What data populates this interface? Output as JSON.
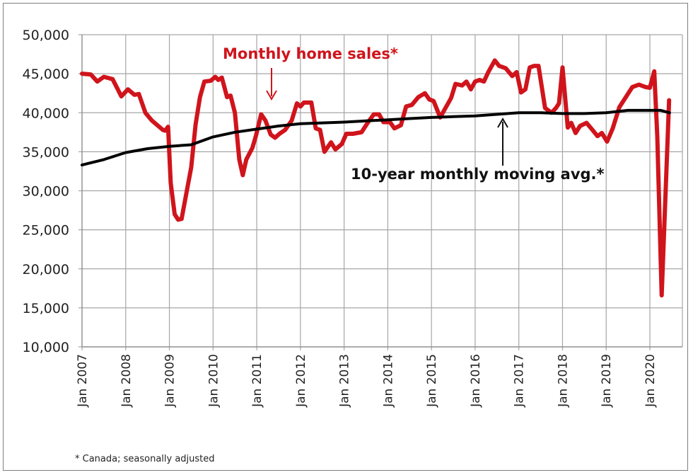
{
  "chart_data": {
    "type": "line",
    "title": "",
    "xlabel": "",
    "ylabel": "",
    "ylim": [
      10000,
      50000
    ],
    "xlim": [
      2007.0,
      2020.75
    ],
    "grid": true,
    "y_ticks": [
      "10,000",
      "15,000",
      "20,000",
      "25,000",
      "30,000",
      "35,000",
      "40,000",
      "45,000",
      "50,000"
    ],
    "y_tick_values": [
      10000,
      15000,
      20000,
      25000,
      30000,
      35000,
      40000,
      45000,
      50000
    ],
    "x_ticks": [
      "Jan 2007",
      "Jan 2008",
      "Jan 2009",
      "Jan 2010",
      "Jan 2011",
      "Jan 2012",
      "Jan 2013",
      "Jan 2014",
      "Jan 2015",
      "Jan 2016",
      "Jan 2017",
      "Jan 2018",
      "Jan 2019",
      "Jan 2020"
    ],
    "x_tick_values": [
      2007,
      2008,
      2009,
      2010,
      2011,
      2012,
      2013,
      2014,
      2015,
      2016,
      2017,
      2018,
      2019,
      2020
    ],
    "series": [
      {
        "name": "Monthly home sales*",
        "color": "#d0141c",
        "points": [
          [
            2007.0,
            45000
          ],
          [
            2007.2,
            44900
          ],
          [
            2007.35,
            44000
          ],
          [
            2007.5,
            44600
          ],
          [
            2007.7,
            44300
          ],
          [
            2007.9,
            42100
          ],
          [
            2008.05,
            43000
          ],
          [
            2008.2,
            42300
          ],
          [
            2008.3,
            42400
          ],
          [
            2008.45,
            40000
          ],
          [
            2008.6,
            39000
          ],
          [
            2008.85,
            37800
          ],
          [
            2008.9,
            37700
          ],
          [
            2008.97,
            38200
          ],
          [
            2009.03,
            31000
          ],
          [
            2009.12,
            27000
          ],
          [
            2009.2,
            26300
          ],
          [
            2009.28,
            26400
          ],
          [
            2009.4,
            30000
          ],
          [
            2009.5,
            33000
          ],
          [
            2009.6,
            38500
          ],
          [
            2009.7,
            42000
          ],
          [
            2009.8,
            44000
          ],
          [
            2009.95,
            44100
          ],
          [
            2010.05,
            44600
          ],
          [
            2010.12,
            44200
          ],
          [
            2010.2,
            44500
          ],
          [
            2010.32,
            42000
          ],
          [
            2010.4,
            42200
          ],
          [
            2010.5,
            40000
          ],
          [
            2010.6,
            34000
          ],
          [
            2010.68,
            32000
          ],
          [
            2010.76,
            34000
          ],
          [
            2010.9,
            35500
          ],
          [
            2010.98,
            37000
          ],
          [
            2011.1,
            39800
          ],
          [
            2011.2,
            39000
          ],
          [
            2011.32,
            37200
          ],
          [
            2011.42,
            36800
          ],
          [
            2011.52,
            37300
          ],
          [
            2011.65,
            37800
          ],
          [
            2011.8,
            39000
          ],
          [
            2011.92,
            41200
          ],
          [
            2012.0,
            40800
          ],
          [
            2012.08,
            41300
          ],
          [
            2012.25,
            41300
          ],
          [
            2012.35,
            38000
          ],
          [
            2012.45,
            37800
          ],
          [
            2012.55,
            35000
          ],
          [
            2012.7,
            36200
          ],
          [
            2012.8,
            35300
          ],
          [
            2012.95,
            36000
          ],
          [
            2013.05,
            37300
          ],
          [
            2013.2,
            37300
          ],
          [
            2013.4,
            37500
          ],
          [
            2013.55,
            38800
          ],
          [
            2013.68,
            39800
          ],
          [
            2013.8,
            39800
          ],
          [
            2013.9,
            38800
          ],
          [
            2014.05,
            38800
          ],
          [
            2014.15,
            38000
          ],
          [
            2014.3,
            38400
          ],
          [
            2014.42,
            40800
          ],
          [
            2014.55,
            41000
          ],
          [
            2014.7,
            42000
          ],
          [
            2014.85,
            42500
          ],
          [
            2014.95,
            41700
          ],
          [
            2015.05,
            41500
          ],
          [
            2015.2,
            39400
          ],
          [
            2015.35,
            40900
          ],
          [
            2015.45,
            41900
          ],
          [
            2015.55,
            43700
          ],
          [
            2015.7,
            43500
          ],
          [
            2015.8,
            44000
          ],
          [
            2015.9,
            43000
          ],
          [
            2016.0,
            44000
          ],
          [
            2016.1,
            44200
          ],
          [
            2016.2,
            44000
          ],
          [
            2016.3,
            45200
          ],
          [
            2016.45,
            46700
          ],
          [
            2016.55,
            46000
          ],
          [
            2016.7,
            45700
          ],
          [
            2016.85,
            44700
          ],
          [
            2016.95,
            45200
          ],
          [
            2017.05,
            42600
          ],
          [
            2017.15,
            43000
          ],
          [
            2017.25,
            45800
          ],
          [
            2017.35,
            46000
          ],
          [
            2017.45,
            46000
          ],
          [
            2017.6,
            40600
          ],
          [
            2017.75,
            40000
          ],
          [
            2017.85,
            40600
          ],
          [
            2017.92,
            41200
          ],
          [
            2018.0,
            45800
          ],
          [
            2018.12,
            38100
          ],
          [
            2018.2,
            38700
          ],
          [
            2018.3,
            37400
          ],
          [
            2018.4,
            38300
          ],
          [
            2018.55,
            38700
          ],
          [
            2018.7,
            37700
          ],
          [
            2018.8,
            37000
          ],
          [
            2018.9,
            37400
          ],
          [
            2019.02,
            36300
          ],
          [
            2019.15,
            38000
          ],
          [
            2019.3,
            40700
          ],
          [
            2019.45,
            42000
          ],
          [
            2019.6,
            43300
          ],
          [
            2019.75,
            43600
          ],
          [
            2019.9,
            43300
          ],
          [
            2020.0,
            43200
          ],
          [
            2020.1,
            45300
          ],
          [
            2020.17,
            37000
          ],
          [
            2020.27,
            16600
          ],
          [
            2020.44,
            41600
          ]
        ]
      },
      {
        "name": "10-year monthly moving avg.*",
        "color": "#000000",
        "points": [
          [
            2007.0,
            33300
          ],
          [
            2007.5,
            34000
          ],
          [
            2008.0,
            34900
          ],
          [
            2008.5,
            35400
          ],
          [
            2009.0,
            35700
          ],
          [
            2009.5,
            35900
          ],
          [
            2010.0,
            36900
          ],
          [
            2010.5,
            37500
          ],
          [
            2011.0,
            37900
          ],
          [
            2011.5,
            38300
          ],
          [
            2012.0,
            38600
          ],
          [
            2012.5,
            38700
          ],
          [
            2013.0,
            38800
          ],
          [
            2013.5,
            38950
          ],
          [
            2014.0,
            39100
          ],
          [
            2014.5,
            39250
          ],
          [
            2015.0,
            39400
          ],
          [
            2015.5,
            39500
          ],
          [
            2016.0,
            39600
          ],
          [
            2016.5,
            39800
          ],
          [
            2017.0,
            40000
          ],
          [
            2017.5,
            40000
          ],
          [
            2018.0,
            39900
          ],
          [
            2018.5,
            39900
          ],
          [
            2019.0,
            40000
          ],
          [
            2019.5,
            40300
          ],
          [
            2020.0,
            40300
          ],
          [
            2020.25,
            40300
          ],
          [
            2020.45,
            40000
          ]
        ]
      }
    ],
    "annotations": {
      "sales_label": "Monthly home sales*",
      "avg_label": "10-year monthly moving avg.*"
    },
    "footnote": "* Canada; seasonally adjusted"
  }
}
